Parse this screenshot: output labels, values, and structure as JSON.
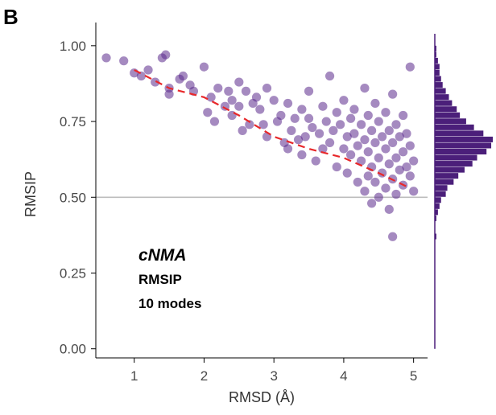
{
  "chart_data": {
    "type": "scatter",
    "panel_label": "B",
    "title": "",
    "xlabel": "RMSD (Å)",
    "ylabel": "RMSIP",
    "xlim": [
      0.45,
      5.2
    ],
    "ylim": [
      -0.03,
      1.05
    ],
    "x_ticks": [
      1,
      2,
      3,
      4,
      5
    ],
    "x_tick_labels": [
      "1",
      "2",
      "3",
      "4",
      "5"
    ],
    "y_ticks": [
      0.0,
      0.25,
      0.5,
      0.75,
      1.0
    ],
    "y_tick_labels": [
      "0.00",
      "0.25",
      "0.50",
      "0.75",
      "1.00"
    ],
    "grid": false,
    "annotations": [
      "cNMA",
      "RMSIP",
      "10 modes"
    ],
    "reference_line": {
      "y": 0.5,
      "color": "#bdbdbd"
    },
    "colors": {
      "points": "#5b2a8c",
      "trend": "#e8282a",
      "reference": "#bdbdbd",
      "histogram": "#4b1f7a"
    },
    "trend_line": {
      "style": "dashed",
      "x": [
        1.0,
        1.5,
        2.0,
        2.5,
        3.0,
        3.5,
        4.0,
        4.5,
        4.95
      ],
      "y": [
        0.92,
        0.86,
        0.83,
        0.77,
        0.7,
        0.66,
        0.63,
        0.58,
        0.53
      ]
    },
    "marginal_histogram": {
      "orientation": "horizontal",
      "bins": [
        [
          0.99,
          1
        ],
        [
          0.97,
          1
        ],
        [
          0.95,
          2
        ],
        [
          0.93,
          3
        ],
        [
          0.91,
          3
        ],
        [
          0.89,
          4
        ],
        [
          0.87,
          5
        ],
        [
          0.85,
          7
        ],
        [
          0.83,
          9
        ],
        [
          0.81,
          11
        ],
        [
          0.79,
          14
        ],
        [
          0.77,
          16
        ],
        [
          0.75,
          20
        ],
        [
          0.73,
          25
        ],
        [
          0.71,
          31
        ],
        [
          0.69,
          37
        ],
        [
          0.67,
          36
        ],
        [
          0.65,
          33
        ],
        [
          0.63,
          27
        ],
        [
          0.61,
          24
        ],
        [
          0.59,
          19
        ],
        [
          0.57,
          15
        ],
        [
          0.55,
          12
        ],
        [
          0.53,
          8
        ],
        [
          0.51,
          7
        ],
        [
          0.49,
          4
        ],
        [
          0.47,
          3
        ],
        [
          0.45,
          2
        ],
        [
          0.43,
          1
        ],
        [
          0.37,
          1
        ]
      ]
    },
    "series": [
      {
        "points": [
          [
            0.6,
            0.96
          ],
          [
            0.85,
            0.95
          ],
          [
            1.0,
            0.91
          ],
          [
            1.1,
            0.9
          ],
          [
            1.2,
            0.92
          ],
          [
            1.3,
            0.88
          ],
          [
            1.4,
            0.96
          ],
          [
            1.45,
            0.97
          ],
          [
            1.5,
            0.86
          ],
          [
            1.5,
            0.84
          ],
          [
            1.65,
            0.89
          ],
          [
            1.7,
            0.9
          ],
          [
            1.8,
            0.87
          ],
          [
            1.85,
            0.85
          ],
          [
            2.0,
            0.93
          ],
          [
            2.05,
            0.78
          ],
          [
            2.1,
            0.83
          ],
          [
            2.15,
            0.75
          ],
          [
            2.2,
            0.86
          ],
          [
            2.3,
            0.8
          ],
          [
            2.35,
            0.85
          ],
          [
            2.4,
            0.77
          ],
          [
            2.4,
            0.82
          ],
          [
            2.5,
            0.88
          ],
          [
            2.5,
            0.8
          ],
          [
            2.55,
            0.72
          ],
          [
            2.6,
            0.85
          ],
          [
            2.65,
            0.74
          ],
          [
            2.7,
            0.81
          ],
          [
            2.75,
            0.83
          ],
          [
            2.8,
            0.79
          ],
          [
            2.85,
            0.74
          ],
          [
            2.9,
            0.86
          ],
          [
            2.9,
            0.7
          ],
          [
            3.0,
            0.82
          ],
          [
            3.05,
            0.75
          ],
          [
            3.1,
            0.77
          ],
          [
            3.15,
            0.68
          ],
          [
            3.2,
            0.66
          ],
          [
            3.2,
            0.81
          ],
          [
            3.25,
            0.72
          ],
          [
            3.3,
            0.76
          ],
          [
            3.35,
            0.69
          ],
          [
            3.4,
            0.64
          ],
          [
            3.4,
            0.79
          ],
          [
            3.45,
            0.7
          ],
          [
            3.5,
            0.76
          ],
          [
            3.5,
            0.85
          ],
          [
            3.55,
            0.73
          ],
          [
            3.6,
            0.62
          ],
          [
            3.65,
            0.71
          ],
          [
            3.7,
            0.8
          ],
          [
            3.7,
            0.66
          ],
          [
            3.75,
            0.75
          ],
          [
            3.8,
            0.9
          ],
          [
            3.8,
            0.68
          ],
          [
            3.85,
            0.72
          ],
          [
            3.9,
            0.78
          ],
          [
            3.9,
            0.6
          ],
          [
            3.95,
            0.74
          ],
          [
            4.0,
            0.82
          ],
          [
            4.0,
            0.66
          ],
          [
            4.05,
            0.7
          ],
          [
            4.05,
            0.58
          ],
          [
            4.1,
            0.76
          ],
          [
            4.1,
            0.64
          ],
          [
            4.15,
            0.79
          ],
          [
            4.15,
            0.71
          ],
          [
            4.2,
            0.67
          ],
          [
            4.2,
            0.55
          ],
          [
            4.25,
            0.74
          ],
          [
            4.25,
            0.62
          ],
          [
            4.3,
            0.86
          ],
          [
            4.3,
            0.69
          ],
          [
            4.3,
            0.52
          ],
          [
            4.35,
            0.77
          ],
          [
            4.35,
            0.65
          ],
          [
            4.35,
            0.57
          ],
          [
            4.4,
            0.72
          ],
          [
            4.4,
            0.6
          ],
          [
            4.4,
            0.48
          ],
          [
            4.45,
            0.81
          ],
          [
            4.45,
            0.68
          ],
          [
            4.45,
            0.55
          ],
          [
            4.5,
            0.75
          ],
          [
            4.5,
            0.63
          ],
          [
            4.5,
            0.5
          ],
          [
            4.55,
            0.7
          ],
          [
            4.55,
            0.58
          ],
          [
            4.6,
            0.78
          ],
          [
            4.6,
            0.66
          ],
          [
            4.6,
            0.53
          ],
          [
            4.65,
            0.72
          ],
          [
            4.65,
            0.61
          ],
          [
            4.65,
            0.46
          ],
          [
            4.7,
            0.84
          ],
          [
            4.7,
            0.68
          ],
          [
            4.7,
            0.56
          ],
          [
            4.7,
            0.37
          ],
          [
            4.75,
            0.74
          ],
          [
            4.75,
            0.63
          ],
          [
            4.75,
            0.51
          ],
          [
            4.8,
            0.7
          ],
          [
            4.8,
            0.59
          ],
          [
            4.85,
            0.77
          ],
          [
            4.85,
            0.65
          ],
          [
            4.85,
            0.54
          ],
          [
            4.9,
            0.71
          ],
          [
            4.9,
            0.6
          ],
          [
            4.95,
            0.67
          ],
          [
            4.95,
            0.57
          ],
          [
            4.95,
            0.93
          ],
          [
            5.0,
            0.62
          ],
          [
            5.0,
            0.52
          ]
        ]
      }
    ]
  }
}
